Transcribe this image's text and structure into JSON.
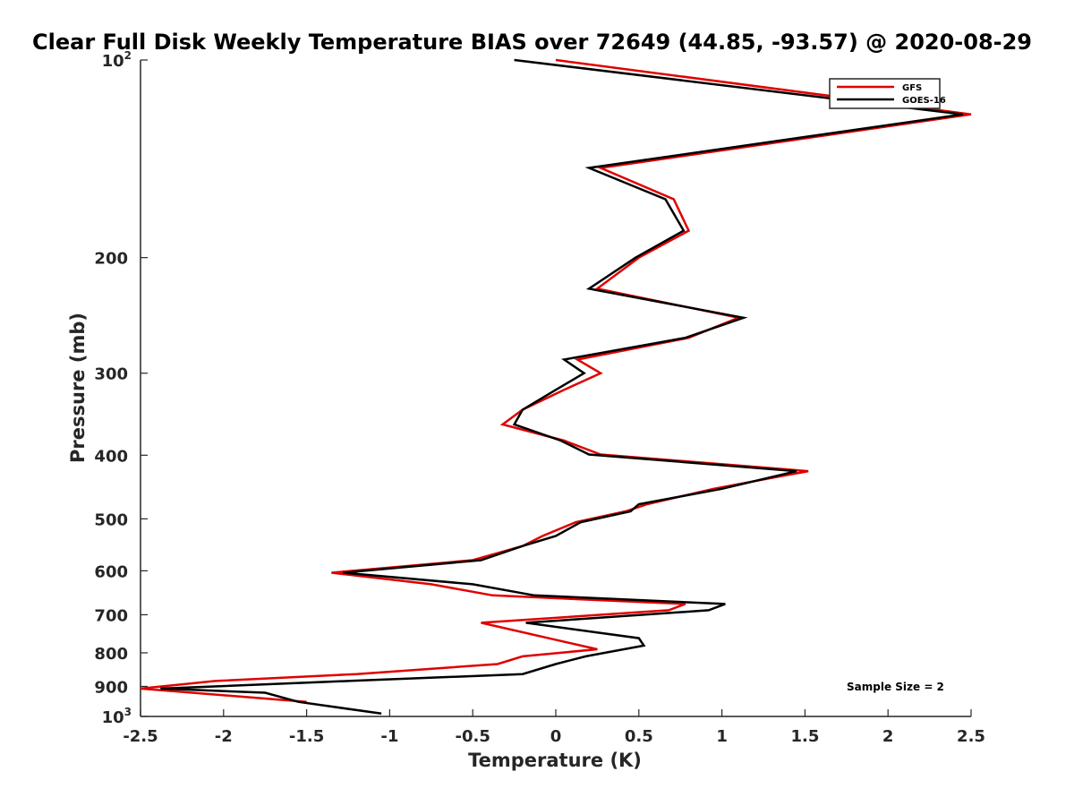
{
  "chart_data": {
    "type": "line",
    "title": "Clear Full Disk Weekly Temperature BIAS over 72649 (44.85, -93.57) @ 2020-08-29",
    "xlabel": "Temperature (K)",
    "ylabel": "Pressure (mb)",
    "xlim": [
      -2.5,
      2.5
    ],
    "ylim": [
      100,
      1000
    ],
    "y_scale": "log",
    "y_reversed": true,
    "grid": false,
    "legend_position": "top-right",
    "x_ticks": [
      {
        "value": -2.5,
        "label": "-2.5"
      },
      {
        "value": -2,
        "label": "-2"
      },
      {
        "value": -1.5,
        "label": "-1.5"
      },
      {
        "value": -1,
        "label": "-1"
      },
      {
        "value": -0.5,
        "label": "-0.5"
      },
      {
        "value": 0,
        "label": "0"
      },
      {
        "value": 0.5,
        "label": "0.5"
      },
      {
        "value": 1,
        "label": "1"
      },
      {
        "value": 1.5,
        "label": "1.5"
      },
      {
        "value": 2,
        "label": "2"
      },
      {
        "value": 2.5,
        "label": "2.5"
      }
    ],
    "y_ticks": [
      {
        "value": 100,
        "base": "10",
        "sup": "2"
      },
      {
        "value": 200,
        "base": "200",
        "sup": ""
      },
      {
        "value": 300,
        "base": "300",
        "sup": ""
      },
      {
        "value": 400,
        "base": "400",
        "sup": ""
      },
      {
        "value": 500,
        "base": "500",
        "sup": ""
      },
      {
        "value": 600,
        "base": "600",
        "sup": ""
      },
      {
        "value": 700,
        "base": "700",
        "sup": ""
      },
      {
        "value": 800,
        "base": "800",
        "sup": ""
      },
      {
        "value": 900,
        "base": "900",
        "sup": ""
      },
      {
        "value": 1000,
        "base": "10",
        "sup": "3"
      }
    ],
    "series": [
      {
        "name": "GFS",
        "color": "#e00000",
        "points": [
          [
            0.0,
            100
          ],
          [
            2.5,
            121
          ],
          [
            0.27,
            146
          ],
          [
            0.71,
            163
          ],
          [
            0.8,
            182
          ],
          [
            0.5,
            200
          ],
          [
            0.25,
            223
          ],
          [
            1.1,
            247
          ],
          [
            0.8,
            265
          ],
          [
            0.13,
            286
          ],
          [
            0.27,
            300
          ],
          [
            0.05,
            318
          ],
          [
            -0.2,
            341
          ],
          [
            -0.32,
            359
          ],
          [
            0.05,
            380
          ],
          [
            0.27,
            399
          ],
          [
            1.52,
            423
          ],
          [
            0.95,
            450
          ],
          [
            0.55,
            475
          ],
          [
            0.42,
            487
          ],
          [
            0.12,
            506
          ],
          [
            -0.08,
            531
          ],
          [
            -0.2,
            550
          ],
          [
            -0.5,
            578
          ],
          [
            -1.35,
            604
          ],
          [
            -0.75,
            629
          ],
          [
            -0.38,
            654
          ],
          [
            0.78,
            674
          ],
          [
            0.68,
            689
          ],
          [
            -0.45,
            720
          ],
          [
            0.25,
            790
          ],
          [
            -0.2,
            810
          ],
          [
            -0.35,
            832
          ],
          [
            -1.2,
            862
          ],
          [
            -2.05,
            883
          ],
          [
            -2.5,
            907
          ],
          [
            -1.5,
            950
          ]
        ]
      },
      {
        "name": "GOES-16",
        "color": "#000000",
        "points": [
          [
            -0.25,
            100
          ],
          [
            2.45,
            121
          ],
          [
            0.2,
            146
          ],
          [
            0.66,
            163
          ],
          [
            0.77,
            182
          ],
          [
            0.48,
            200
          ],
          [
            0.2,
            223
          ],
          [
            1.13,
            247
          ],
          [
            0.78,
            265
          ],
          [
            0.05,
            286
          ],
          [
            0.17,
            300
          ],
          [
            0.0,
            318
          ],
          [
            -0.2,
            341
          ],
          [
            -0.25,
            359
          ],
          [
            0.03,
            380
          ],
          [
            0.2,
            399
          ],
          [
            1.45,
            423
          ],
          [
            1.0,
            450
          ],
          [
            0.5,
            475
          ],
          [
            0.45,
            487
          ],
          [
            0.15,
            506
          ],
          [
            0.0,
            531
          ],
          [
            -0.2,
            550
          ],
          [
            -0.45,
            578
          ],
          [
            -1.28,
            604
          ],
          [
            -0.5,
            629
          ],
          [
            -0.13,
            654
          ],
          [
            1.02,
            674
          ],
          [
            0.92,
            689
          ],
          [
            -0.18,
            720
          ],
          [
            0.5,
            760
          ],
          [
            0.53,
            780
          ],
          [
            0.18,
            810
          ],
          [
            0.0,
            832
          ],
          [
            -0.2,
            862
          ],
          [
            -1.25,
            883
          ],
          [
            -2.38,
            907
          ],
          [
            -1.75,
            920
          ],
          [
            -1.55,
            950
          ],
          [
            -1.05,
            990
          ]
        ]
      }
    ],
    "annotation": "Sample Size = 2"
  }
}
